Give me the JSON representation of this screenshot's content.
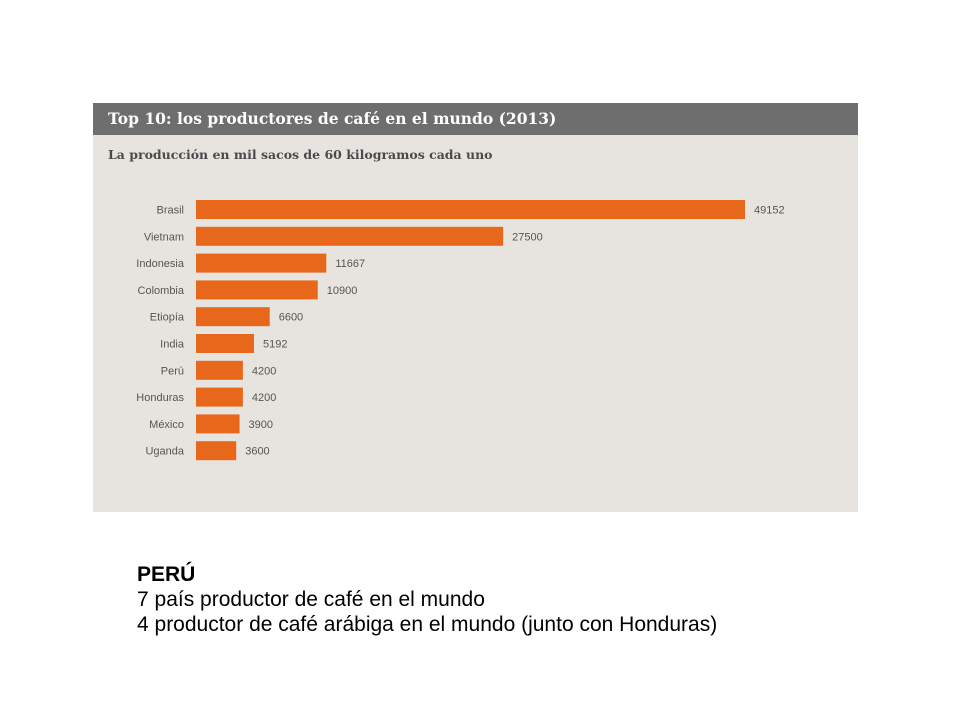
{
  "chart_data": {
    "type": "bar",
    "orientation": "horizontal",
    "title": "Top 10: los productores de café en el mundo (2013)",
    "subtitle": "La producción en mil sacos de 60 kilogramos cada uno",
    "categories": [
      "Brasil",
      "Vietnam",
      "Indonesia",
      "Colombia",
      "Etiopía",
      "India",
      "Perú",
      "Honduras",
      "México",
      "Uganda"
    ],
    "values": [
      49152,
      27500,
      11667,
      10900,
      6600,
      5192,
      4200,
      4200,
      3900,
      3600
    ],
    "value_labels": [
      "49152",
      "27500",
      "11667",
      "10900",
      "6600",
      "5192",
      "4200",
      "4200",
      "3900",
      "3600"
    ],
    "xlim": [
      0,
      49152
    ],
    "grid": false,
    "bar_color": "#e8681b",
    "header_color": "#6e6e6e",
    "panel_color": "#e7e4df"
  },
  "caption": {
    "heading": "PERÚ",
    "line1": "7 país productor de café en el mundo",
    "line2": "4 productor de café arábiga en el mundo (junto con Honduras)"
  }
}
